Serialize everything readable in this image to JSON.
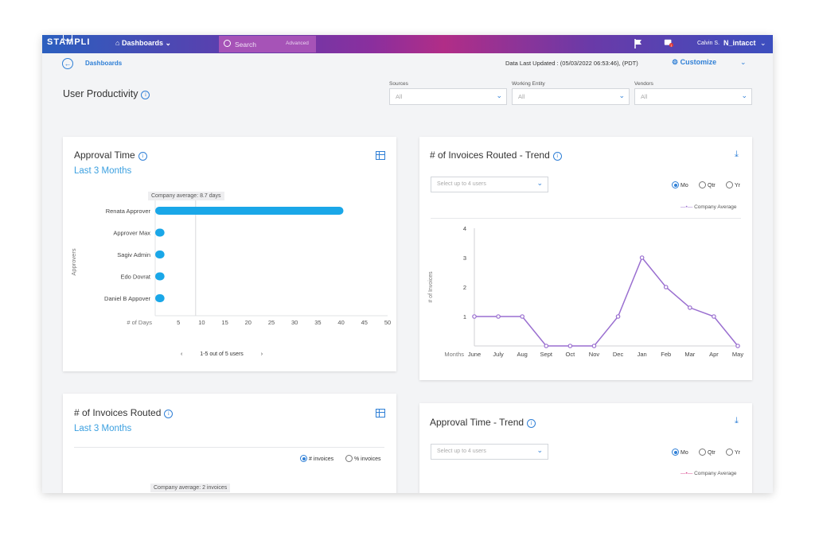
{
  "topbar": {
    "logo": "STAMPLI",
    "nav_label": "Dashboards",
    "search_placeholder": "Search",
    "search_advanced": "Advanced",
    "user_name": "Calvin S.",
    "org_name": "N_intacct",
    "notification_count": "1"
  },
  "header": {
    "breadcrumb": "Dashboards",
    "data_updated": "Data Last Updated : (05/03/2022 06:53:46), (PDT)",
    "customize_label": "Customize",
    "page_title": "User Productivity"
  },
  "filters": {
    "sources": {
      "label": "Sources",
      "value": "All"
    },
    "working_entity": {
      "label": "Working Entity",
      "value": "All"
    },
    "vendors": {
      "label": "Vendors",
      "value": "All"
    }
  },
  "approval_time": {
    "title": "Approval Time",
    "subtitle": "Last 3 Months",
    "average_label": "Company average: 8.7 days",
    "y_axis_label": "Approvers",
    "x_axis_label": "# of Days",
    "pager_text": "1-5 out of 5 users"
  },
  "invoices_trend": {
    "title": "# of Invoices Routed - Trend",
    "select_placeholder": "Select up to 4 users",
    "radio_mo": "Mo",
    "radio_qtr": "Qtr",
    "radio_yr": "Yr",
    "legend_label": "Company Average",
    "y_axis_label": "# of Invoices",
    "x_axis_label": "Months"
  },
  "invoices_routed": {
    "title": "# of Invoices Routed",
    "subtitle": "Last 3 Months",
    "radio_count": "# invoices",
    "radio_percent": "% invoices",
    "average_label": "Company average: 2 invoices"
  },
  "approval_trend": {
    "title": "Approval Time - Trend",
    "select_placeholder": "Select up to 4 users",
    "radio_mo": "Mo",
    "radio_qtr": "Qtr",
    "radio_yr": "Yr",
    "legend_label": "Company Average"
  },
  "colors": {
    "accent": "#2f7fd6",
    "bar": "#1aa7e8",
    "line": "#9a6fd0",
    "legend_pink": "#d9468e"
  },
  "chart_data": [
    {
      "type": "bar",
      "orientation": "horizontal",
      "categories": [
        "Renata Approver",
        "Approver Max",
        "Sagiv Admin",
        "Edo Dovrat",
        "Daniel B Appover"
      ],
      "values": [
        40.5,
        2,
        2,
        2,
        2
      ],
      "xlabel": "# of Days",
      "ylabel": "Approvers",
      "xticks": [
        5,
        10,
        15,
        20,
        25,
        30,
        35,
        40,
        45,
        50
      ],
      "xlim": [
        0,
        50
      ],
      "reference_line": 8.7
    },
    {
      "type": "line",
      "categories": [
        "June",
        "July",
        "Aug",
        "Sept",
        "Oct",
        "Nov",
        "Dec",
        "Jan",
        "Feb",
        "Mar",
        "Apr",
        "May"
      ],
      "series": [
        {
          "name": "Company Average",
          "values": [
            1,
            1,
            1,
            0,
            0,
            0,
            1,
            3,
            2,
            1.3,
            1,
            0
          ]
        }
      ],
      "ylabel": "# of Invoices",
      "xlabel": "Months",
      "yticks": [
        1,
        2,
        3,
        4
      ],
      "ylim": [
        0,
        4
      ]
    }
  ]
}
